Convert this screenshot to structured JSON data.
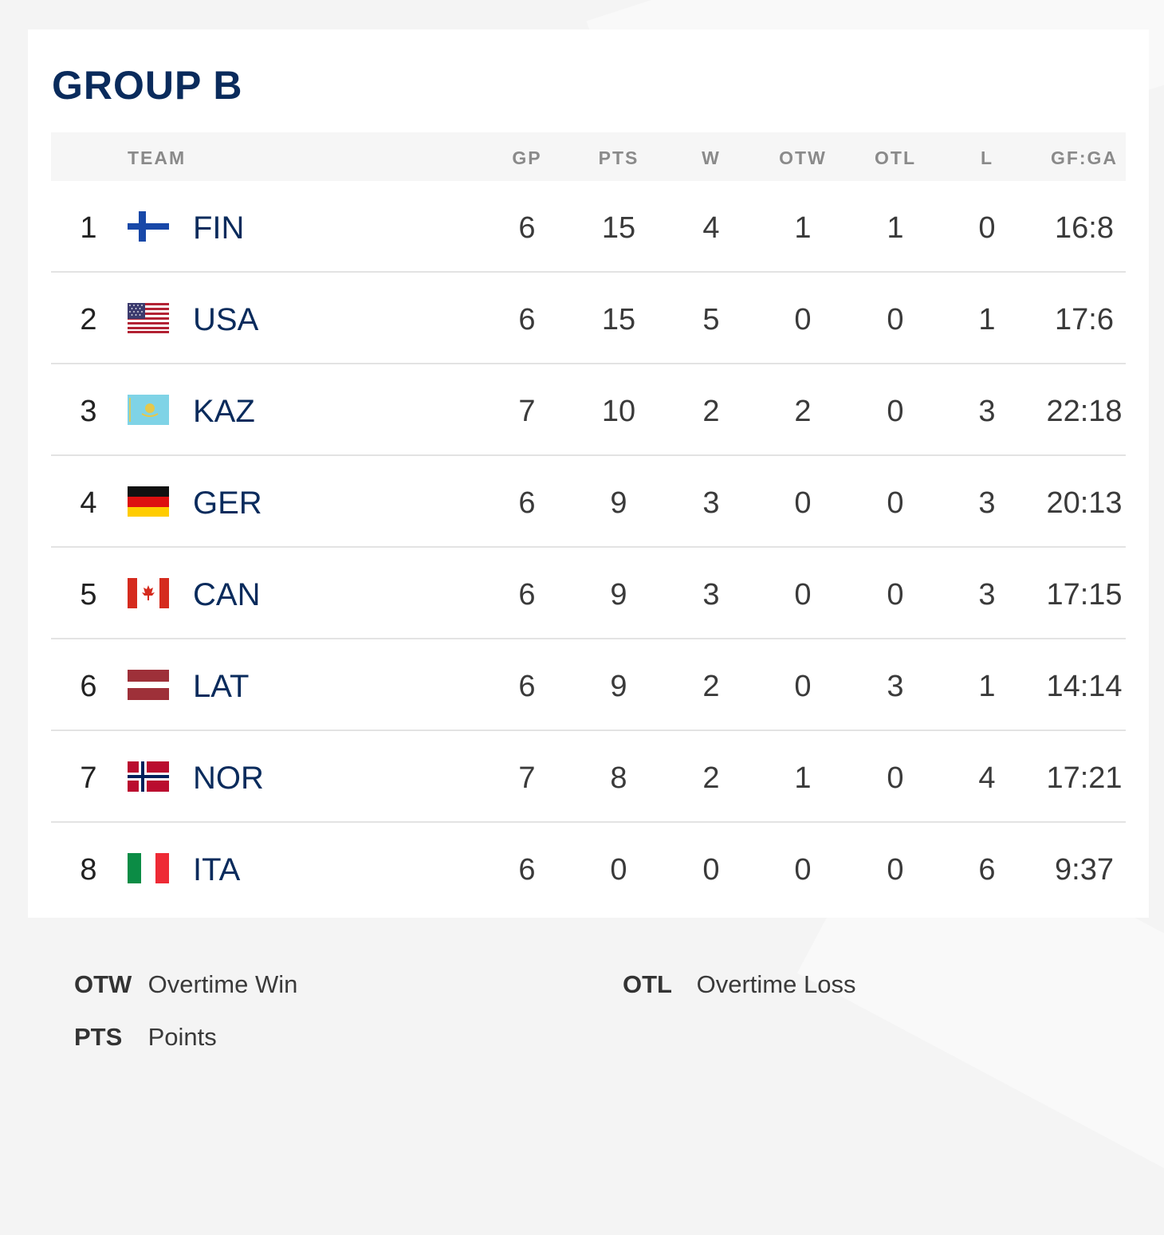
{
  "group": {
    "title": "GROUP B"
  },
  "columns": {
    "team": "TEAM",
    "gp": "GP",
    "pts": "PTS",
    "w": "W",
    "otw": "OTW",
    "otl": "OTL",
    "l": "L",
    "gfga": "GF:GA"
  },
  "rows": [
    {
      "rank": "1",
      "code": "FIN",
      "flag": "finland-flag-icon",
      "gp": "6",
      "pts": "15",
      "w": "4",
      "otw": "1",
      "otl": "1",
      "l": "0",
      "gfga": "16:8"
    },
    {
      "rank": "2",
      "code": "USA",
      "flag": "usa-flag-icon",
      "gp": "6",
      "pts": "15",
      "w": "5",
      "otw": "0",
      "otl": "0",
      "l": "1",
      "gfga": "17:6"
    },
    {
      "rank": "3",
      "code": "KAZ",
      "flag": "kazakhstan-flag-icon",
      "gp": "7",
      "pts": "10",
      "w": "2",
      "otw": "2",
      "otl": "0",
      "l": "3",
      "gfga": "22:18"
    },
    {
      "rank": "4",
      "code": "GER",
      "flag": "germany-flag-icon",
      "gp": "6",
      "pts": "9",
      "w": "3",
      "otw": "0",
      "otl": "0",
      "l": "3",
      "gfga": "20:13"
    },
    {
      "rank": "5",
      "code": "CAN",
      "flag": "canada-flag-icon",
      "gp": "6",
      "pts": "9",
      "w": "3",
      "otw": "0",
      "otl": "0",
      "l": "3",
      "gfga": "17:15"
    },
    {
      "rank": "6",
      "code": "LAT",
      "flag": "latvia-flag-icon",
      "gp": "6",
      "pts": "9",
      "w": "2",
      "otw": "0",
      "otl": "3",
      "l": "1",
      "gfga": "14:14"
    },
    {
      "rank": "7",
      "code": "NOR",
      "flag": "norway-flag-icon",
      "gp": "7",
      "pts": "8",
      "w": "2",
      "otw": "1",
      "otl": "0",
      "l": "4",
      "gfga": "17:21"
    },
    {
      "rank": "8",
      "code": "ITA",
      "flag": "italy-flag-icon",
      "gp": "6",
      "pts": "0",
      "w": "0",
      "otw": "0",
      "otl": "0",
      "l": "6",
      "gfga": "9:37"
    }
  ],
  "legend": {
    "otw": {
      "abbr": "OTW",
      "desc": "Overtime Win"
    },
    "otl": {
      "abbr": "OTL",
      "desc": "Overtime Loss"
    },
    "pts": {
      "abbr": "PTS",
      "desc": "Points"
    }
  },
  "colors": {
    "title": "#0a2b5c",
    "header_bg": "#f6f6f6",
    "header_text": "#8a8a8a",
    "divider": "#e3e3e3"
  }
}
